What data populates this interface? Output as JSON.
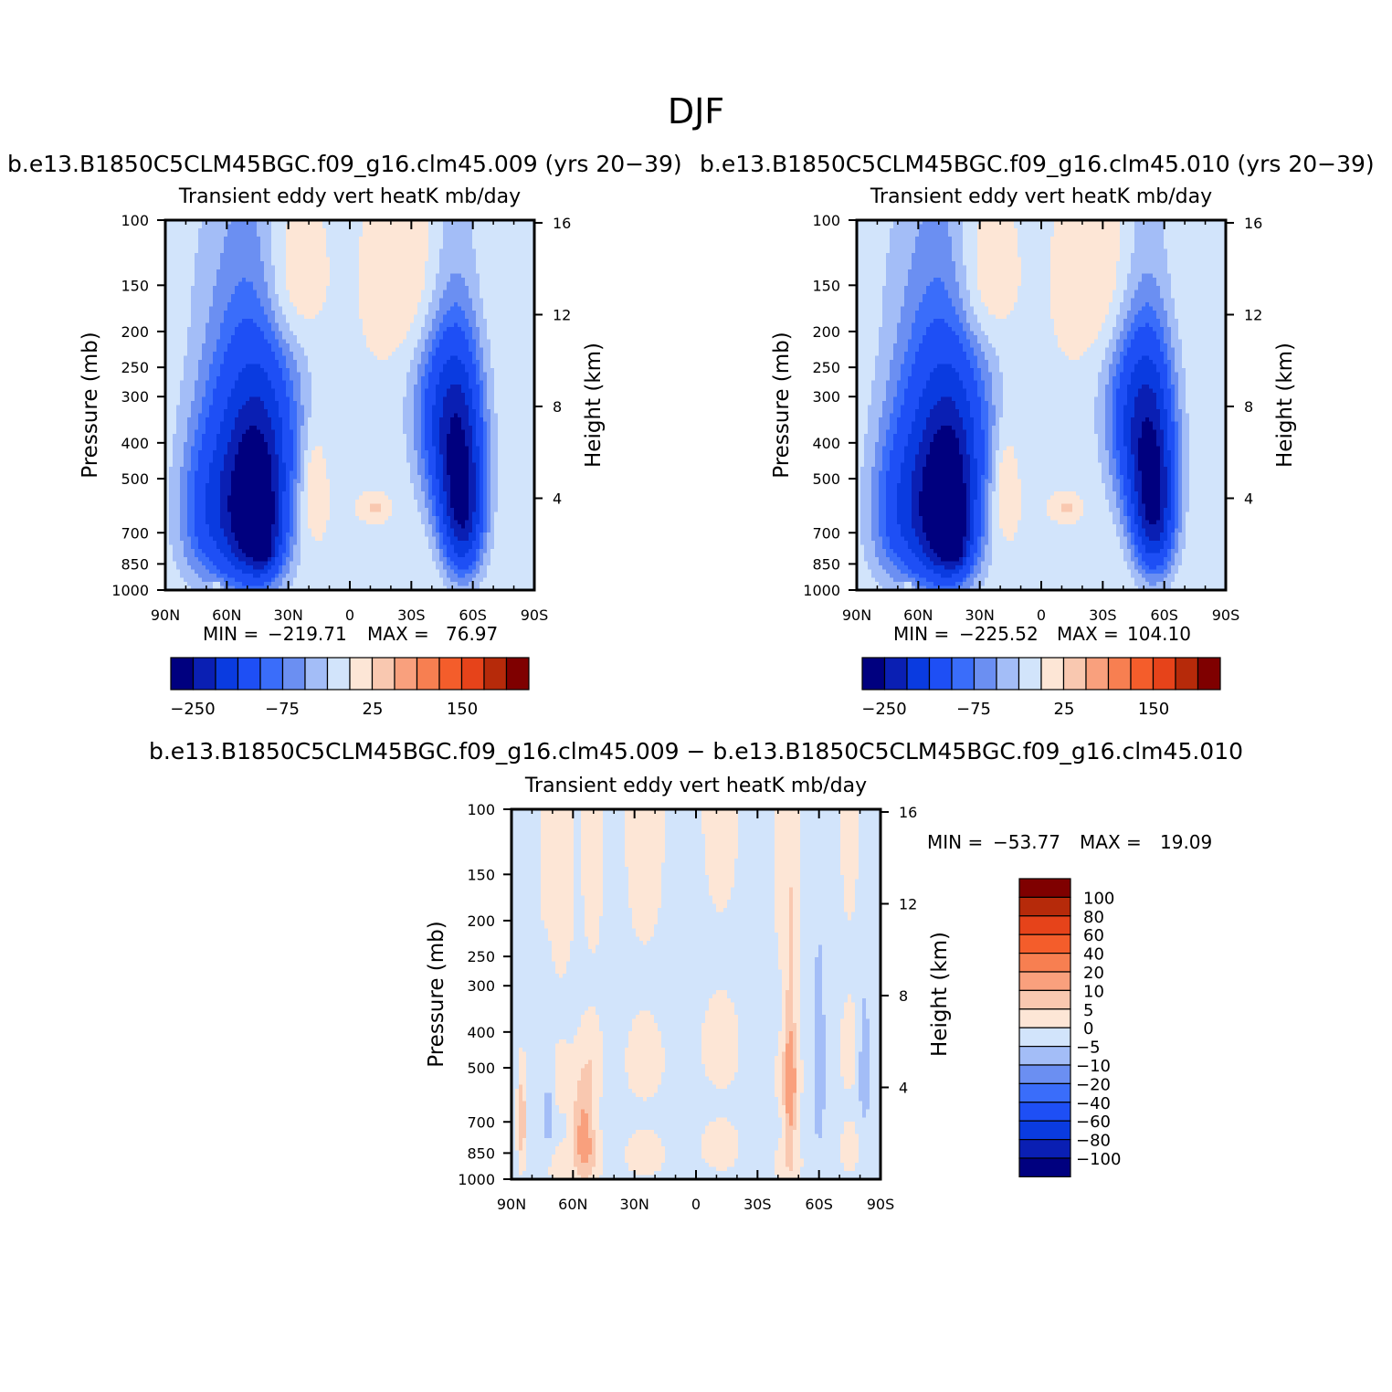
{
  "figure": {
    "title": "DJF"
  },
  "palettes": {
    "main": [
      "#00007f",
      "#0a1fb3",
      "#0a3be0",
      "#1e4ff5",
      "#3a6dfa",
      "#6b8ff2",
      "#a3bdf7",
      "#d2e4fb",
      "#fde6d6",
      "#f9c8b0",
      "#f9a07d",
      "#f77f51",
      "#f45d2b",
      "#e6431a",
      "#b62a0a",
      "#7f0000"
    ],
    "diff": [
      "#00007f",
      "#0a1fb3",
      "#0a3be0",
      "#1e4ff5",
      "#3a6dfa",
      "#6b8ff2",
      "#a3bdf7",
      "#d2e4fb",
      "#fde6d6",
      "#f9c8b0",
      "#f9a07d",
      "#f77f51",
      "#f45d2b",
      "#e6431a",
      "#b62a0a",
      "#7f0000"
    ]
  },
  "chart_data": [
    {
      "type": "heatmap",
      "panel_title": "b.e13.B1850C5CLM45BGC.f09_g16.clm45.009 (yrs 20−39)",
      "subtitle": "Transient eddy vert heatK mb/day",
      "xlabel": "",
      "ylabel": "Pressure (mb)",
      "y2label": "Height (km)",
      "x_ticks": [
        "90N",
        "60N",
        "30N",
        "0",
        "30S",
        "60S",
        "90S"
      ],
      "y_ticks": [
        "100",
        "150",
        "200",
        "250",
        "300",
        "400",
        "500",
        "700",
        "850",
        "1000"
      ],
      "y2_ticks": [
        "16",
        "12",
        "8",
        "4"
      ],
      "stats": {
        "min_label": "MIN =",
        "min": "−219.71",
        "max_label": "MAX =",
        "max": "76.97"
      },
      "colorbar_labels": [
        "−250",
        "−75",
        "25",
        "150"
      ],
      "features": [
        {
          "lat": 45,
          "p": 650,
          "value": -230,
          "wlat": 13,
          "wp": 270
        },
        {
          "lat": 42,
          "p": 780,
          "value": -80,
          "wlat": 5,
          "wp": 90
        },
        {
          "lat": 53,
          "p": 550,
          "value": -140,
          "wlat": 20,
          "wp": 400
        },
        {
          "lat": 70,
          "p": 620,
          "value": -75,
          "wlat": 15,
          "wp": 300
        },
        {
          "lat": 40,
          "p": 350,
          "value": -80,
          "wlat": 20,
          "wp": 200
        },
        {
          "lat": -55,
          "p": 620,
          "value": -215,
          "wlat": 10,
          "wp": 280
        },
        {
          "lat": -50,
          "p": 400,
          "value": -140,
          "wlat": 14,
          "wp": 260
        },
        {
          "lat": -45,
          "p": 300,
          "value": -60,
          "wlat": 16,
          "wp": 170
        },
        {
          "lat": 18,
          "p": 520,
          "value": 45,
          "wlat": 6,
          "wp": 170
        },
        {
          "lat": -12,
          "p": 600,
          "value": 35,
          "wlat": 6,
          "wp": 40
        },
        {
          "lat": 30,
          "p": 150,
          "value": 45,
          "wlat": 14,
          "wp": 70
        },
        {
          "lat": -40,
          "p": 150,
          "value": 45,
          "wlat": 22,
          "wp": 90
        },
        {
          "lat": 80,
          "p": 120,
          "value": -4,
          "wlat": 10,
          "wp": 60
        },
        {
          "lat": 65,
          "p": 980,
          "value": 60,
          "wlat": 2,
          "wp": 40
        }
      ],
      "background": -3
    },
    {
      "type": "heatmap",
      "panel_title": "b.e13.B1850C5CLM45BGC.f09_g16.clm45.010 (yrs 20−39)",
      "subtitle": "Transient eddy vert heatK mb/day",
      "xlabel": "",
      "ylabel": "Pressure (mb)",
      "y2label": "Height (km)",
      "x_ticks": [
        "90N",
        "60N",
        "30N",
        "0",
        "30S",
        "60S",
        "90S"
      ],
      "y_ticks": [
        "100",
        "150",
        "200",
        "250",
        "300",
        "400",
        "500",
        "700",
        "850",
        "1000"
      ],
      "y2_ticks": [
        "16",
        "12",
        "8",
        "4"
      ],
      "stats": {
        "min_label": "MIN =",
        "min": "−225.52",
        "max_label": "MAX =",
        "max": "104.10"
      },
      "colorbar_labels": [
        "−250",
        "−75",
        "25",
        "150"
      ],
      "features": [
        {
          "lat": 45,
          "p": 650,
          "value": -235,
          "wlat": 13,
          "wp": 270
        },
        {
          "lat": 42,
          "p": 780,
          "value": -80,
          "wlat": 5,
          "wp": 90
        },
        {
          "lat": 53,
          "p": 550,
          "value": -140,
          "wlat": 20,
          "wp": 400
        },
        {
          "lat": 70,
          "p": 620,
          "value": -75,
          "wlat": 15,
          "wp": 300
        },
        {
          "lat": 40,
          "p": 350,
          "value": -80,
          "wlat": 20,
          "wp": 200
        },
        {
          "lat": -55,
          "p": 620,
          "value": -210,
          "wlat": 10,
          "wp": 280
        },
        {
          "lat": -50,
          "p": 400,
          "value": -140,
          "wlat": 14,
          "wp": 260
        },
        {
          "lat": -45,
          "p": 300,
          "value": -60,
          "wlat": 16,
          "wp": 170
        },
        {
          "lat": 18,
          "p": 520,
          "value": 45,
          "wlat": 6,
          "wp": 170
        },
        {
          "lat": -12,
          "p": 600,
          "value": 35,
          "wlat": 6,
          "wp": 40
        },
        {
          "lat": 30,
          "p": 150,
          "value": 45,
          "wlat": 14,
          "wp": 70
        },
        {
          "lat": -40,
          "p": 150,
          "value": 45,
          "wlat": 22,
          "wp": 90
        },
        {
          "lat": 80,
          "p": 120,
          "value": -4,
          "wlat": 10,
          "wp": 60
        },
        {
          "lat": 65,
          "p": 980,
          "value": 60,
          "wlat": 2,
          "wp": 40
        }
      ],
      "background": -3
    },
    {
      "type": "heatmap",
      "panel_title": "b.e13.B1850C5CLM45BGC.f09_g16.clm45.009 − b.e13.B1850C5CLM45BGC.f09_g16.clm45.010",
      "subtitle": "Transient eddy vert heatK mb/day",
      "xlabel": "",
      "ylabel": "Pressure (mb)",
      "y2label": "Height (km)",
      "x_ticks": [
        "90N",
        "60N",
        "30N",
        "0",
        "30S",
        "60S",
        "90S"
      ],
      "y_ticks": [
        "100",
        "150",
        "200",
        "250",
        "300",
        "400",
        "500",
        "700",
        "850",
        "1000"
      ],
      "y2_ticks": [
        "16",
        "12",
        "8",
        "4"
      ],
      "stats": {
        "min_label": "MIN =",
        "min": "−53.77",
        "max_label": "MAX =",
        "max": "19.09"
      },
      "colorbar_labels": [
        "100",
        "80",
        "60",
        "40",
        "20",
        "10",
        "5",
        "0",
        "−5",
        "−10",
        "−20",
        "−40",
        "−60",
        "−80",
        "−100"
      ],
      "features": [
        {
          "lat": 55,
          "p": 760,
          "value": 14,
          "wlat": 5,
          "wp": 250
        },
        {
          "lat": -46,
          "p": 560,
          "value": 14,
          "wlat": 3,
          "wp": 300
        },
        {
          "lat": 85,
          "p": 700,
          "value": 12,
          "wlat": 2,
          "wp": 200
        },
        {
          "lat": 72,
          "p": 600,
          "value": -7,
          "wlat": 3,
          "wp": 300
        },
        {
          "lat": -60,
          "p": 500,
          "value": -7,
          "wlat": 3,
          "wp": 300
        },
        {
          "lat": -82,
          "p": 500,
          "value": -7,
          "wlat": 3,
          "wp": 200
        }
      ],
      "stripes": [
        {
          "lat": 68,
          "w": 9,
          "value": 3
        },
        {
          "lat": 50,
          "w": 5,
          "value": 3
        },
        {
          "lat": 25,
          "w": 10,
          "value": 3
        },
        {
          "lat": -12,
          "w": 10,
          "value": 3
        },
        {
          "lat": -45,
          "w": 7,
          "value": 3
        },
        {
          "lat": -75,
          "w": 5,
          "value": 3
        }
      ],
      "background": -2
    }
  ]
}
